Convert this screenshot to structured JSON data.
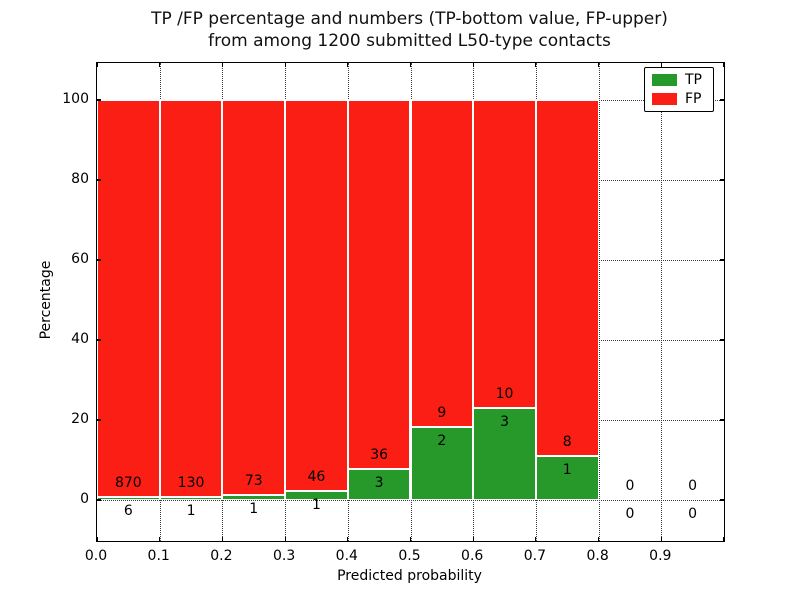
{
  "title": {
    "line1": "TP /FP percentage and numbers (TP-bottom value, FP-upper)",
    "line2": "from among 1200 submitted L50-type contacts"
  },
  "axes": {
    "xlabel": "Predicted probability",
    "ylabel": "Percentage",
    "yticks": [
      "0",
      "20",
      "40",
      "60",
      "80",
      "100"
    ],
    "ytick_values": [
      0,
      20,
      40,
      60,
      80,
      100
    ],
    "xticks": [
      "0.0",
      "0.1",
      "0.2",
      "0.3",
      "0.4",
      "0.5",
      "0.6",
      "0.7",
      "0.8",
      "0.9"
    ],
    "xtick_values": [
      0.0,
      0.1,
      0.2,
      0.3,
      0.4,
      0.5,
      0.6,
      0.7,
      0.8,
      0.9
    ]
  },
  "legend": {
    "items": [
      {
        "label": "TP",
        "color": "#26992a"
      },
      {
        "label": "FP",
        "color": "#fa1e14"
      }
    ]
  },
  "chart_data": {
    "type": "bar",
    "stacked": true,
    "title": "TP /FP percentage and numbers (TP-bottom value, FP-upper) from among 1200 submitted L50-type contacts",
    "xlabel": "Predicted probability",
    "ylabel": "Percentage",
    "xlim": [
      0.0,
      1.0
    ],
    "ylim": [
      -10.25,
      109.25
    ],
    "grid": true,
    "legend_position": "upper right",
    "bin_width": 0.1,
    "bin_starts": [
      0.0,
      0.1,
      0.2,
      0.3,
      0.4,
      0.5,
      0.6,
      0.7,
      0.8,
      0.9
    ],
    "series": [
      {
        "name": "TP",
        "color": "#26992a",
        "counts": [
          6,
          1,
          1,
          1,
          3,
          2,
          3,
          1,
          0,
          0
        ]
      },
      {
        "name": "FP",
        "color": "#fa1e14",
        "counts": [
          870,
          130,
          73,
          46,
          36,
          9,
          10,
          8,
          0,
          0
        ]
      }
    ],
    "tp_percent_of_bin": [
      0.68,
      0.76,
      1.35,
      2.13,
      7.69,
      18.18,
      23.08,
      11.11,
      0,
      0
    ],
    "bars_total_percent": 100
  }
}
